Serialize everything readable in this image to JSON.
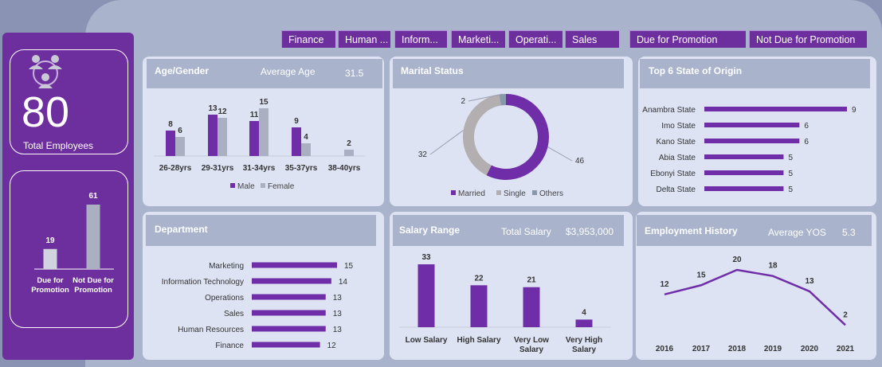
{
  "filters": [
    "Finance",
    "Human ...",
    "Inform...",
    "Marketi...",
    "Operati...",
    "Sales"
  ],
  "promo_filters": [
    "Due for Promotion",
    "Not Due for Promotion"
  ],
  "summary": {
    "total_employees": "80",
    "total_label": "Total Employees"
  },
  "colors": {
    "purple": "#6f2da8",
    "gray": "#aab0c2",
    "light_gray": "#d0d4de",
    "panel_bg": "#dde3f3"
  },
  "promotion": {
    "chart_data": {
      "type": "bar",
      "categories": [
        "Due for Promotion",
        "Not Due for Promotion"
      ],
      "category_lines": [
        [
          "Due for",
          "Promotion"
        ],
        [
          "Not Due for",
          "Promotion"
        ]
      ],
      "values": [
        19,
        61
      ]
    }
  },
  "age_gender": {
    "title": "Age/Gender",
    "avg_label": "Average Age",
    "avg_value": "31.5",
    "chart_data": {
      "type": "bar",
      "categories": [
        "26-28yrs",
        "29-31yrs",
        "31-34yrs",
        "35-37yrs",
        "38-40yrs"
      ],
      "series": [
        {
          "name": "Male",
          "values": [
            8,
            13,
            11,
            9,
            null
          ]
        },
        {
          "name": "Female",
          "values": [
            6,
            12,
            15,
            4,
            2
          ]
        }
      ],
      "legend": "bottom"
    }
  },
  "marital": {
    "title": "Marital Status",
    "chart_data": {
      "type": "pie",
      "labels": [
        "Married",
        "Single",
        "Others"
      ],
      "values": [
        46,
        32,
        2
      ],
      "legend": "bottom"
    }
  },
  "states": {
    "title": "Top 6 State of Origin",
    "chart_data": {
      "type": "bar",
      "orientation": "horizontal",
      "categories": [
        "Anambra State",
        "Imo State",
        "Kano State",
        "Abia State",
        "Ebonyi State",
        "Delta State"
      ],
      "values": [
        9,
        6,
        6,
        5,
        5,
        5
      ]
    }
  },
  "department": {
    "title": "Department",
    "chart_data": {
      "type": "bar",
      "orientation": "horizontal",
      "categories": [
        "Marketing",
        "Information Technology",
        "Operations",
        "Sales",
        "Human Resources",
        "Finance"
      ],
      "values": [
        15,
        14,
        13,
        13,
        13,
        12
      ]
    }
  },
  "salary": {
    "title": "Salary Range",
    "total_label": "Total  Salary",
    "total_value": "$3,953,000",
    "chart_data": {
      "type": "bar",
      "categories": [
        "Low Salary",
        "High Salary",
        "Very Low Salary",
        "Very High Salary"
      ],
      "category_lines": [
        [
          "Low Salary"
        ],
        [
          "High Salary"
        ],
        [
          "Very Low",
          "Salary"
        ],
        [
          "Very High",
          "Salary"
        ]
      ],
      "values": [
        33,
        22,
        21,
        4
      ]
    }
  },
  "employment": {
    "title": "Employment History",
    "avg_label": "Average YOS",
    "avg_value": "5.3",
    "chart_data": {
      "type": "line",
      "x": [
        "2016",
        "2017",
        "2018",
        "2019",
        "2020",
        "2021"
      ],
      "values": [
        12,
        15,
        20,
        18,
        13,
        2
      ]
    }
  }
}
